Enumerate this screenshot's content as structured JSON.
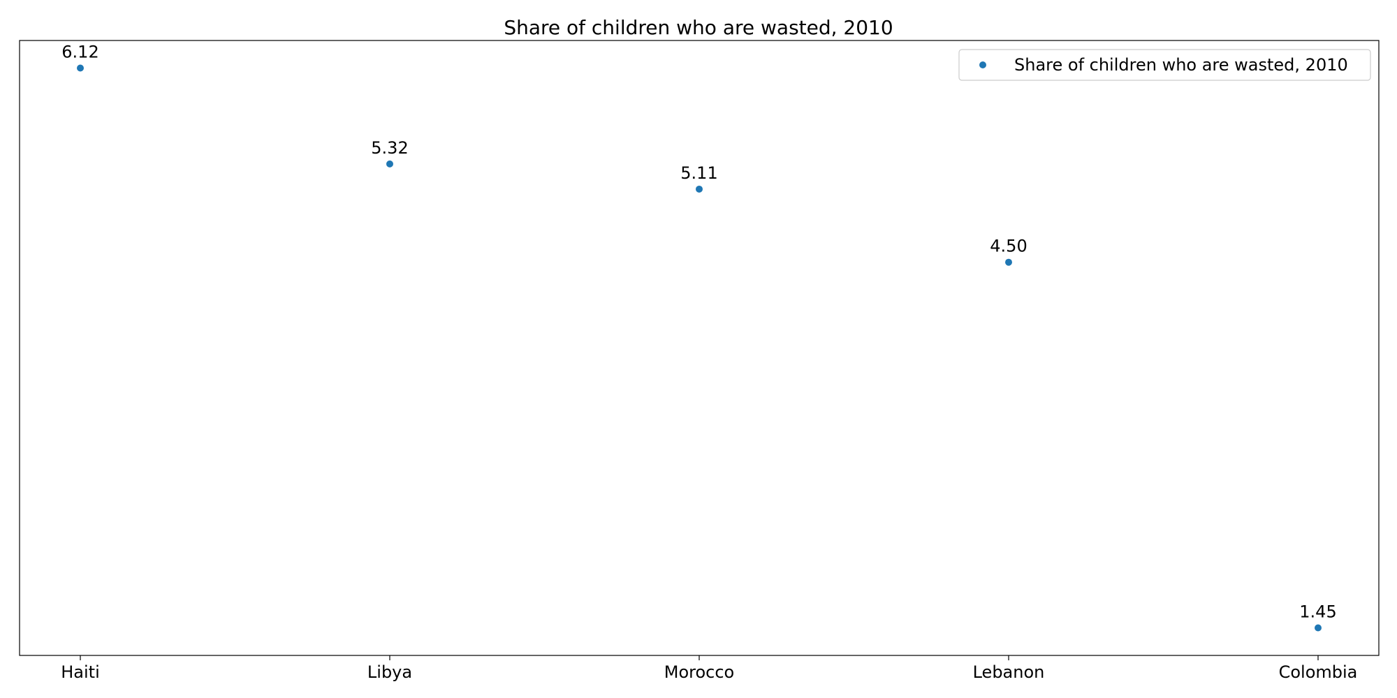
{
  "chart_data": {
    "type": "scatter",
    "title": "Share of children who are wasted, 2010",
    "xlabel": "",
    "ylabel": "",
    "categories": [
      "Haiti",
      "Libya",
      "Morocco",
      "Lebanon",
      "Colombia"
    ],
    "series": [
      {
        "name": "Share of children who are wasted, 2010",
        "values": [
          6.12,
          5.32,
          5.11,
          4.5,
          1.45
        ],
        "value_labels": [
          "6.12",
          "5.32",
          "5.11",
          "4.50",
          "1.45"
        ],
        "color": "#1f77b4"
      }
    ],
    "ylim": [
      1.22,
      6.35
    ],
    "y_ticks_visible": false,
    "grid": false,
    "legend": "top-right"
  }
}
